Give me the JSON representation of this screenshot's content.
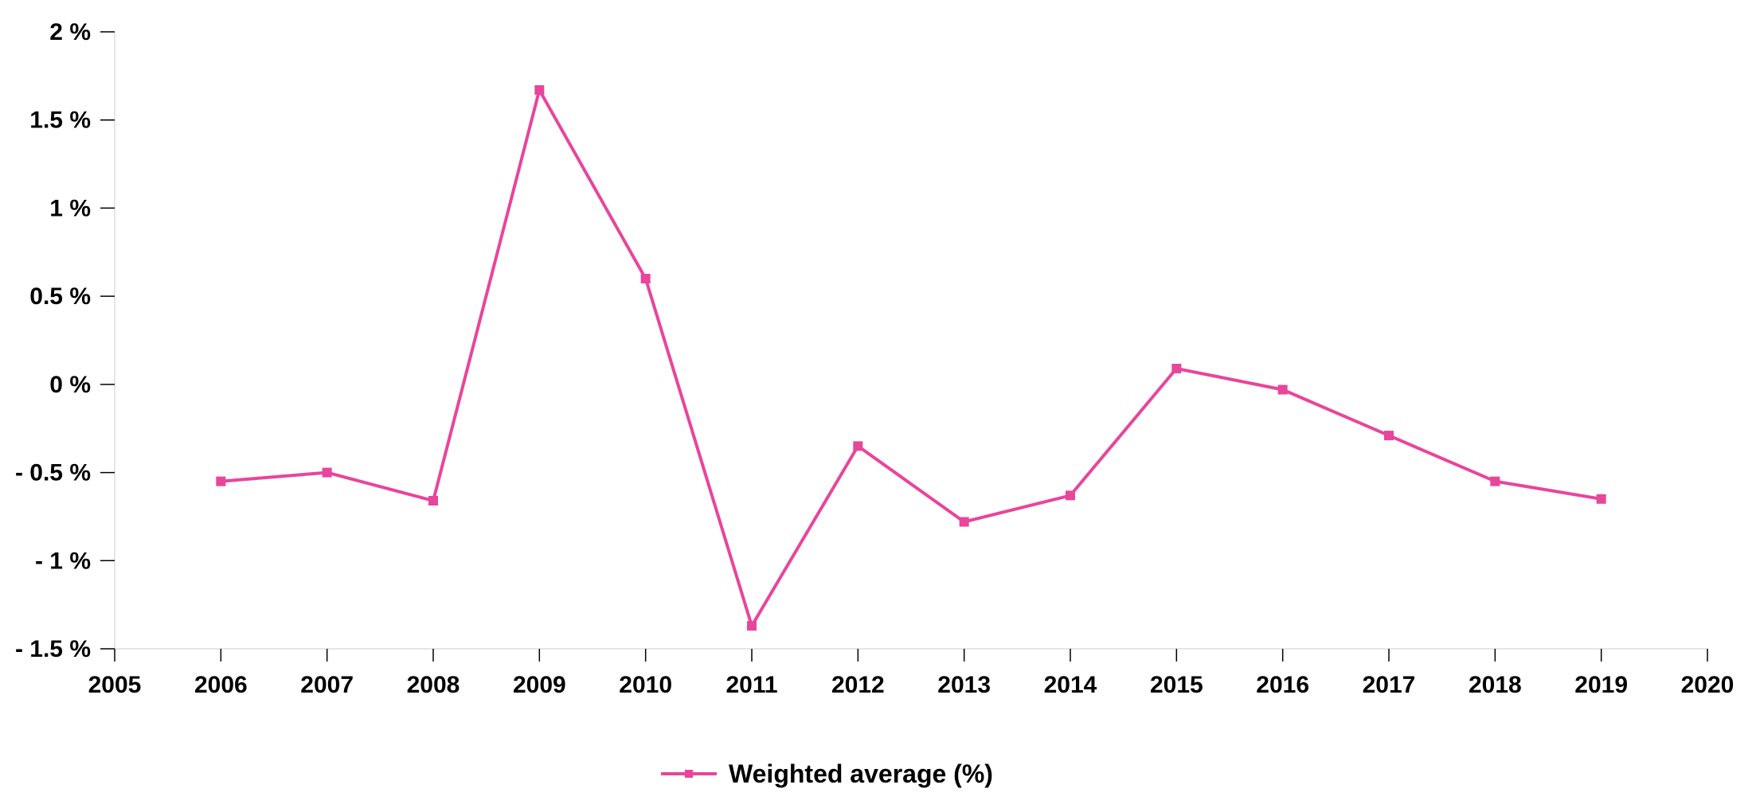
{
  "chart_data": {
    "type": "line",
    "x": [
      2006,
      2007,
      2008,
      2009,
      2010,
      2011,
      2012,
      2013,
      2014,
      2015,
      2016,
      2017,
      2018,
      2019
    ],
    "series": [
      {
        "name": "Weighted average (%)",
        "color": "#e8459b",
        "marker": "square",
        "values": [
          -0.55,
          -0.5,
          -0.66,
          1.67,
          0.6,
          -1.37,
          -0.35,
          -0.78,
          -0.63,
          0.09,
          -0.03,
          -0.29,
          -0.55,
          -0.65
        ]
      }
    ],
    "xlim": [
      2005,
      2020
    ],
    "ylim": [
      -1.5,
      2
    ],
    "x_ticks": [
      2005,
      2006,
      2007,
      2008,
      2009,
      2010,
      2011,
      2012,
      2013,
      2014,
      2015,
      2016,
      2017,
      2018,
      2019,
      2020
    ],
    "x_tick_labels": [
      "2005",
      "2006",
      "2007",
      "2008",
      "2009",
      "2010",
      "2011",
      "2012",
      "2013",
      "2014",
      "2015",
      "2016",
      "2017",
      "2018",
      "2019",
      "2020"
    ],
    "y_ticks": [
      2,
      1.5,
      1,
      0.5,
      0,
      -0.5,
      -1,
      -1.5
    ],
    "y_tick_labels": [
      "2 %",
      "1.5 %",
      "1 %",
      "0.5 %",
      "0 %",
      "- 0.5 %",
      "- 1 %",
      "- 1.5 %"
    ],
    "xlabel": "",
    "ylabel": "",
    "title": "",
    "grid": false,
    "legend": {
      "position": "bottom-center",
      "entries": [
        "Weighted average (%)"
      ]
    }
  }
}
